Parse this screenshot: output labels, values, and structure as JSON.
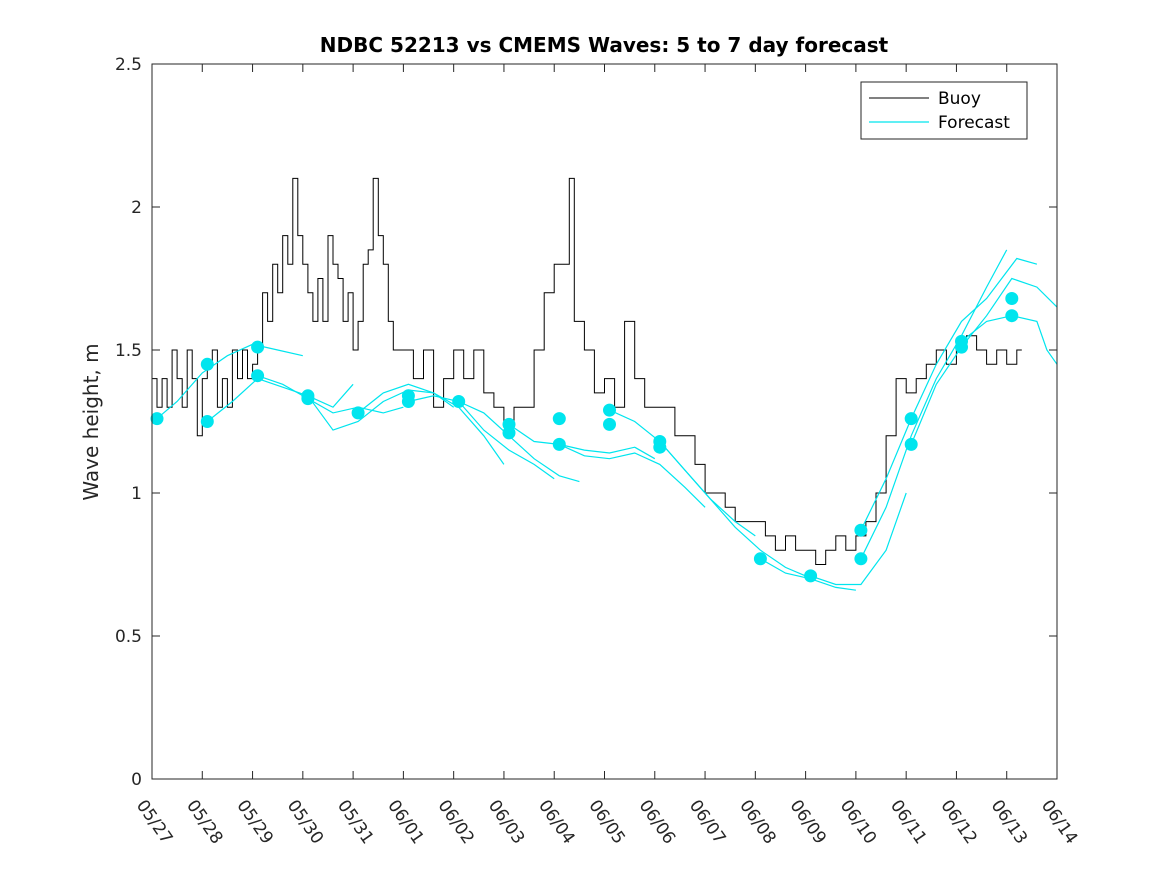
{
  "chart_data": {
    "type": "line",
    "title": "NDBC 52213 vs CMEMS Waves: 5 to 7 day forecast",
    "xlabel": "",
    "ylabel": "Wave height, m",
    "ylim": [
      0,
      2.5
    ],
    "yticks": [
      0,
      0.5,
      1,
      1.5,
      2,
      2.5
    ],
    "ytick_labels": [
      "0",
      "0.5",
      "1",
      "1.5",
      "2",
      "2.5"
    ],
    "xlim": [
      0,
      18
    ],
    "x_unit": "days from 05/27",
    "xtick_labels": [
      "05/27",
      "05/28",
      "05/29",
      "05/30",
      "05/31",
      "06/01",
      "06/02",
      "06/03",
      "06/04",
      "06/05",
      "06/06",
      "06/07",
      "06/08",
      "06/09",
      "06/10",
      "06/11",
      "06/12",
      "06/13",
      "06/14"
    ],
    "grid": false,
    "legend": {
      "position": "top-right",
      "entries": [
        "Buoy",
        "Forecast"
      ]
    },
    "colors": {
      "buoy": "#000000",
      "forecast": "#00e5ee"
    },
    "buoy": {
      "name": "Buoy",
      "points": [
        [
          0,
          1.4
        ],
        [
          0.1,
          1.3
        ],
        [
          0.2,
          1.4
        ],
        [
          0.3,
          1.3
        ],
        [
          0.4,
          1.5
        ],
        [
          0.5,
          1.4
        ],
        [
          0.6,
          1.3
        ],
        [
          0.7,
          1.5
        ],
        [
          0.8,
          1.4
        ],
        [
          0.9,
          1.2
        ],
        [
          1.0,
          1.4
        ],
        [
          1.1,
          1.45
        ],
        [
          1.2,
          1.5
        ],
        [
          1.3,
          1.3
        ],
        [
          1.4,
          1.4
        ],
        [
          1.5,
          1.3
        ],
        [
          1.6,
          1.5
        ],
        [
          1.7,
          1.4
        ],
        [
          1.8,
          1.5
        ],
        [
          1.9,
          1.4
        ],
        [
          2.0,
          1.45
        ],
        [
          2.1,
          1.5
        ],
        [
          2.2,
          1.7
        ],
        [
          2.3,
          1.6
        ],
        [
          2.4,
          1.8
        ],
        [
          2.5,
          1.7
        ],
        [
          2.6,
          1.9
        ],
        [
          2.7,
          1.8
        ],
        [
          2.8,
          2.1
        ],
        [
          2.9,
          1.9
        ],
        [
          3.0,
          1.8
        ],
        [
          3.1,
          1.7
        ],
        [
          3.2,
          1.6
        ],
        [
          3.3,
          1.75
        ],
        [
          3.4,
          1.6
        ],
        [
          3.5,
          1.9
        ],
        [
          3.6,
          1.8
        ],
        [
          3.7,
          1.75
        ],
        [
          3.8,
          1.6
        ],
        [
          3.9,
          1.7
        ],
        [
          4.0,
          1.5
        ],
        [
          4.1,
          1.6
        ],
        [
          4.2,
          1.8
        ],
        [
          4.3,
          1.85
        ],
        [
          4.4,
          2.1
        ],
        [
          4.5,
          1.9
        ],
        [
          4.6,
          1.8
        ],
        [
          4.7,
          1.6
        ],
        [
          4.8,
          1.5
        ],
        [
          5.0,
          1.5
        ],
        [
          5.2,
          1.4
        ],
        [
          5.4,
          1.5
        ],
        [
          5.6,
          1.3
        ],
        [
          5.8,
          1.4
        ],
        [
          6.0,
          1.5
        ],
        [
          6.2,
          1.4
        ],
        [
          6.4,
          1.5
        ],
        [
          6.6,
          1.35
        ],
        [
          6.8,
          1.3
        ],
        [
          7.0,
          1.25
        ],
        [
          7.2,
          1.3
        ],
        [
          7.4,
          1.3
        ],
        [
          7.6,
          1.5
        ],
        [
          7.8,
          1.7
        ],
        [
          8.0,
          1.8
        ],
        [
          8.2,
          1.8
        ],
        [
          8.3,
          2.1
        ],
        [
          8.4,
          1.6
        ],
        [
          8.6,
          1.5
        ],
        [
          8.8,
          1.35
        ],
        [
          9.0,
          1.4
        ],
        [
          9.2,
          1.3
        ],
        [
          9.4,
          1.6
        ],
        [
          9.6,
          1.4
        ],
        [
          9.8,
          1.3
        ],
        [
          10.0,
          1.3
        ],
        [
          10.2,
          1.3
        ],
        [
          10.4,
          1.2
        ],
        [
          10.6,
          1.2
        ],
        [
          10.8,
          1.1
        ],
        [
          11.0,
          1.0
        ],
        [
          11.2,
          1.0
        ],
        [
          11.4,
          0.95
        ],
        [
          11.6,
          0.9
        ],
        [
          11.8,
          0.9
        ],
        [
          12.0,
          0.9
        ],
        [
          12.2,
          0.85
        ],
        [
          12.4,
          0.8
        ],
        [
          12.6,
          0.85
        ],
        [
          12.8,
          0.8
        ],
        [
          13.0,
          0.8
        ],
        [
          13.2,
          0.75
        ],
        [
          13.4,
          0.8
        ],
        [
          13.6,
          0.85
        ],
        [
          13.8,
          0.8
        ],
        [
          14.0,
          0.85
        ],
        [
          14.2,
          0.9
        ],
        [
          14.4,
          1.0
        ],
        [
          14.6,
          1.2
        ],
        [
          14.8,
          1.4
        ],
        [
          15.0,
          1.35
        ],
        [
          15.2,
          1.4
        ],
        [
          15.4,
          1.45
        ],
        [
          15.6,
          1.5
        ],
        [
          15.8,
          1.45
        ],
        [
          16.0,
          1.5
        ],
        [
          16.2,
          1.55
        ],
        [
          16.4,
          1.5
        ],
        [
          16.6,
          1.45
        ],
        [
          16.8,
          1.5
        ],
        [
          17.0,
          1.45
        ],
        [
          17.2,
          1.5
        ],
        [
          17.3,
          1.5
        ]
      ]
    },
    "forecast_runs": [
      {
        "name": "Forecast",
        "points": [
          [
            0.1,
            1.26
          ],
          [
            0.5,
            1.32
          ],
          [
            1.0,
            1.42
          ],
          [
            1.5,
            1.48
          ],
          [
            2.0,
            1.52
          ],
          [
            2.5,
            1.5
          ],
          [
            3.0,
            1.48
          ]
        ]
      },
      {
        "name": "Forecast",
        "points": [
          [
            1.1,
            1.25
          ],
          [
            1.6,
            1.32
          ],
          [
            2.1,
            1.4
          ],
          [
            2.6,
            1.37
          ],
          [
            3.1,
            1.34
          ],
          [
            3.6,
            1.3
          ],
          [
            4.0,
            1.38
          ]
        ]
      },
      {
        "name": "Forecast",
        "points": [
          [
            2.1,
            1.41
          ],
          [
            2.6,
            1.38
          ],
          [
            3.1,
            1.33
          ],
          [
            3.6,
            1.28
          ],
          [
            4.1,
            1.3
          ],
          [
            4.6,
            1.28
          ],
          [
            5.0,
            1.3
          ]
        ]
      },
      {
        "name": "Forecast",
        "points": [
          [
            3.1,
            1.34
          ],
          [
            3.6,
            1.22
          ],
          [
            4.1,
            1.25
          ],
          [
            4.6,
            1.32
          ],
          [
            5.1,
            1.36
          ],
          [
            5.6,
            1.35
          ],
          [
            6.0,
            1.3
          ]
        ]
      },
      {
        "name": "Forecast",
        "points": [
          [
            4.1,
            1.28
          ],
          [
            4.6,
            1.35
          ],
          [
            5.1,
            1.38
          ],
          [
            5.6,
            1.35
          ],
          [
            6.1,
            1.3
          ],
          [
            6.6,
            1.2
          ],
          [
            7.0,
            1.1
          ]
        ]
      },
      {
        "name": "Forecast",
        "points": [
          [
            5.1,
            1.32
          ],
          [
            5.6,
            1.34
          ],
          [
            6.1,
            1.32
          ],
          [
            6.6,
            1.22
          ],
          [
            7.1,
            1.15
          ],
          [
            7.6,
            1.1
          ],
          [
            8.0,
            1.05
          ]
        ]
      },
      {
        "name": "Forecast",
        "points": [
          [
            6.1,
            1.32
          ],
          [
            6.6,
            1.28
          ],
          [
            7.1,
            1.2
          ],
          [
            7.6,
            1.12
          ],
          [
            8.1,
            1.06
          ],
          [
            8.5,
            1.04
          ]
        ]
      },
      {
        "name": "Forecast",
        "points": [
          [
            7.1,
            1.24
          ],
          [
            7.6,
            1.18
          ],
          [
            8.1,
            1.17
          ],
          [
            8.6,
            1.15
          ],
          [
            9.1,
            1.14
          ],
          [
            9.6,
            1.16
          ],
          [
            10.0,
            1.12
          ]
        ]
      },
      {
        "name": "Forecast",
        "points": [
          [
            8.1,
            1.17
          ],
          [
            8.6,
            1.13
          ],
          [
            9.1,
            1.12
          ],
          [
            9.6,
            1.14
          ],
          [
            10.1,
            1.1
          ],
          [
            10.6,
            1.02
          ],
          [
            11.0,
            0.95
          ]
        ]
      },
      {
        "name": "Forecast",
        "points": [
          [
            9.1,
            1.29
          ],
          [
            9.6,
            1.25
          ],
          [
            10.1,
            1.18
          ],
          [
            10.6,
            1.08
          ],
          [
            11.1,
            0.98
          ],
          [
            11.6,
            0.9
          ],
          [
            12.0,
            0.85
          ]
        ]
      },
      {
        "name": "Forecast",
        "points": [
          [
            10.1,
            1.18
          ],
          [
            10.6,
            1.08
          ],
          [
            11.1,
            0.98
          ],
          [
            11.6,
            0.88
          ],
          [
            12.1,
            0.8
          ],
          [
            12.6,
            0.74
          ],
          [
            13.0,
            0.71
          ]
        ]
      },
      {
        "name": "Forecast",
        "points": [
          [
            12.1,
            0.77
          ],
          [
            12.6,
            0.72
          ],
          [
            13.1,
            0.7
          ],
          [
            13.6,
            0.67
          ],
          [
            14.0,
            0.66
          ]
        ]
      },
      {
        "name": "Forecast",
        "points": [
          [
            13.1,
            0.71
          ],
          [
            13.6,
            0.68
          ],
          [
            14.1,
            0.68
          ],
          [
            14.6,
            0.8
          ],
          [
            15.0,
            1.0
          ]
        ]
      },
      {
        "name": "Forecast",
        "points": [
          [
            14.1,
            0.77
          ],
          [
            14.6,
            0.95
          ],
          [
            15.1,
            1.2
          ],
          [
            15.6,
            1.4
          ],
          [
            16.1,
            1.55
          ],
          [
            16.6,
            1.72
          ],
          [
            17.0,
            1.85
          ]
        ]
      },
      {
        "name": "Forecast",
        "points": [
          [
            14.1,
            0.87
          ],
          [
            14.6,
            1.05
          ],
          [
            15.1,
            1.26
          ],
          [
            15.6,
            1.45
          ],
          [
            16.1,
            1.6
          ],
          [
            16.6,
            1.68
          ],
          [
            17.2,
            1.82
          ],
          [
            17.6,
            1.8
          ]
        ]
      },
      {
        "name": "Forecast",
        "points": [
          [
            15.1,
            1.17
          ],
          [
            15.6,
            1.38
          ],
          [
            16.1,
            1.51
          ],
          [
            16.6,
            1.62
          ],
          [
            17.1,
            1.75
          ],
          [
            17.6,
            1.72
          ],
          [
            18.0,
            1.65
          ]
        ]
      },
      {
        "name": "Forecast",
        "points": [
          [
            16.1,
            1.53
          ],
          [
            16.6,
            1.6
          ],
          [
            17.1,
            1.62
          ],
          [
            17.6,
            1.6
          ],
          [
            17.8,
            1.5
          ],
          [
            18.0,
            1.45
          ]
        ]
      }
    ],
    "forecast_markers": [
      [
        0.1,
        1.26
      ],
      [
        1.1,
        1.45
      ],
      [
        1.1,
        1.25
      ],
      [
        2.1,
        1.51
      ],
      [
        2.1,
        1.41
      ],
      [
        3.1,
        1.34
      ],
      [
        3.1,
        1.33
      ],
      [
        4.1,
        1.28
      ],
      [
        5.1,
        1.34
      ],
      [
        5.1,
        1.32
      ],
      [
        6.1,
        1.32
      ],
      [
        7.1,
        1.24
      ],
      [
        7.1,
        1.21
      ],
      [
        8.1,
        1.26
      ],
      [
        8.1,
        1.17
      ],
      [
        9.1,
        1.29
      ],
      [
        9.1,
        1.24
      ],
      [
        10.1,
        1.18
      ],
      [
        10.1,
        1.16
      ],
      [
        12.1,
        0.77
      ],
      [
        13.1,
        0.71
      ],
      [
        14.1,
        0.87
      ],
      [
        14.1,
        0.77
      ],
      [
        15.1,
        1.26
      ],
      [
        15.1,
        1.17
      ],
      [
        16.1,
        1.53
      ],
      [
        16.1,
        1.51
      ],
      [
        17.1,
        1.68
      ],
      [
        17.1,
        1.62
      ]
    ]
  }
}
